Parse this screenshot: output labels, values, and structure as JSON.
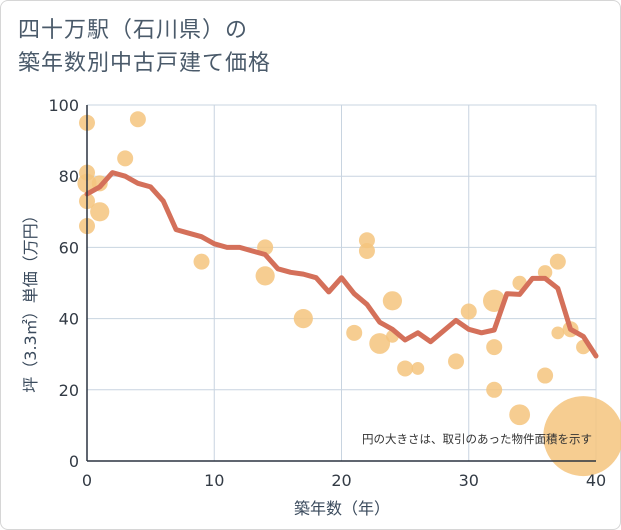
{
  "title_line1": "四十万駅（石川県）の",
  "title_line2": "築年数別中古戸建て価格",
  "chart_data": {
    "type": "scatter",
    "title": "四十万駅（石川県）の築年数別中古戸建て価格",
    "xlabel": "築年数（年）",
    "ylabel": "坪（3.3㎡）単価（万円）",
    "xlim": [
      0,
      40
    ],
    "ylim": [
      0,
      100
    ],
    "xticks": [
      "0",
      "10",
      "20",
      "30",
      "40"
    ],
    "yticks": [
      "0",
      "20",
      "40",
      "60",
      "80",
      "100"
    ],
    "grid": true,
    "annotation": "円の大きさは、取引のあった物件面積を示す",
    "colors": {
      "bubble": "#f5c47e",
      "line": "#d4705a",
      "grid": "#c8d4e0"
    },
    "points": [
      {
        "x": 0,
        "y": 95,
        "s": 1
      },
      {
        "x": 0,
        "y": 81,
        "s": 1
      },
      {
        "x": 0,
        "y": 78,
        "s": 1.2
      },
      {
        "x": 0,
        "y": 73,
        "s": 1
      },
      {
        "x": 0,
        "y": 66,
        "s": 1
      },
      {
        "x": 1,
        "y": 78,
        "s": 1
      },
      {
        "x": 1,
        "y": 70,
        "s": 1.2
      },
      {
        "x": 3,
        "y": 85,
        "s": 1
      },
      {
        "x": 4,
        "y": 96,
        "s": 1
      },
      {
        "x": 9,
        "y": 56,
        "s": 1
      },
      {
        "x": 14,
        "y": 60,
        "s": 1
      },
      {
        "x": 14,
        "y": 52,
        "s": 1.2
      },
      {
        "x": 17,
        "y": 40,
        "s": 1.2
      },
      {
        "x": 21,
        "y": 36,
        "s": 1
      },
      {
        "x": 22,
        "y": 62,
        "s": 1
      },
      {
        "x": 22,
        "y": 59,
        "s": 1
      },
      {
        "x": 23,
        "y": 33,
        "s": 1.3
      },
      {
        "x": 24,
        "y": 45,
        "s": 1.2
      },
      {
        "x": 24,
        "y": 35,
        "s": 0.8
      },
      {
        "x": 25,
        "y": 26,
        "s": 1
      },
      {
        "x": 26,
        "y": 26,
        "s": 0.8
      },
      {
        "x": 29,
        "y": 28,
        "s": 1
      },
      {
        "x": 30,
        "y": 42,
        "s": 1
      },
      {
        "x": 32,
        "y": 45,
        "s": 1.4
      },
      {
        "x": 32,
        "y": 32,
        "s": 1
      },
      {
        "x": 32,
        "y": 20,
        "s": 1
      },
      {
        "x": 34,
        "y": 50,
        "s": 0.9
      },
      {
        "x": 34,
        "y": 13,
        "s": 1.3
      },
      {
        "x": 36,
        "y": 53,
        "s": 0.9
      },
      {
        "x": 36,
        "y": 24,
        "s": 1
      },
      {
        "x": 37,
        "y": 56,
        "s": 1
      },
      {
        "x": 37,
        "y": 36,
        "s": 0.8
      },
      {
        "x": 38,
        "y": 37,
        "s": 1
      },
      {
        "x": 39,
        "y": 32,
        "s": 0.9
      },
      {
        "x": 39,
        "y": 7,
        "s": 5
      }
    ],
    "trend": {
      "x": [
        0,
        1,
        2,
        3,
        4,
        5,
        6,
        7,
        8,
        9,
        10,
        11,
        12,
        13,
        14,
        15,
        16,
        17,
        18,
        19,
        20,
        21,
        22,
        23,
        24,
        25,
        26,
        27,
        28,
        29,
        30,
        31,
        32,
        33,
        34,
        35,
        36,
        37,
        38,
        39,
        40
      ],
      "y": [
        75,
        77,
        81,
        80,
        78,
        77,
        73,
        65,
        64,
        63,
        61,
        60,
        60,
        59,
        58,
        54,
        53,
        52.5,
        51.5,
        47.5,
        51.5,
        47,
        44,
        39,
        37,
        34,
        36,
        33.5,
        36.5,
        39.5,
        37,
        36,
        36.8,
        47,
        46.8,
        51.3,
        51.3,
        48.5,
        37,
        35,
        29.5
      ]
    }
  }
}
